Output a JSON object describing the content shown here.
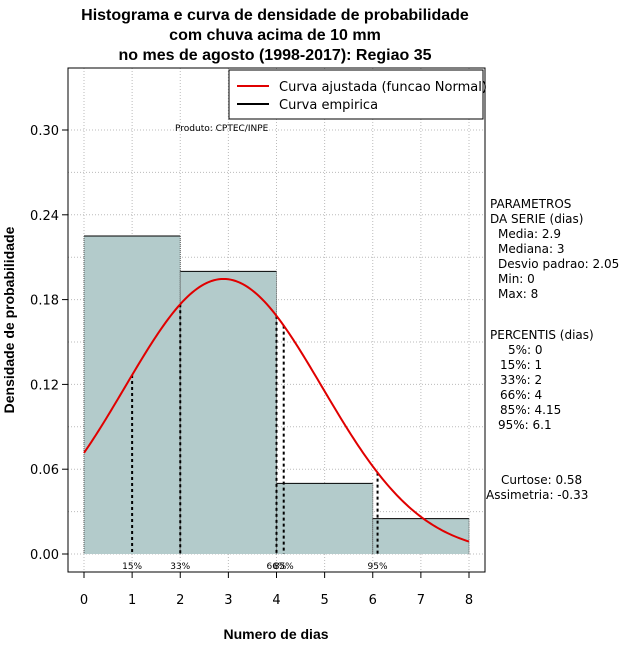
{
  "chart_data": {
    "type": "bar",
    "title": [
      "Histograma e curva de densidade de probabilidade",
      "com chuva acima de 10 mm",
      "no mes de agosto (1998-2017): Regiao 35"
    ],
    "xlabel": "Numero de dias",
    "ylabel": "Densidade de probabilidade",
    "xlim": [
      0,
      8
    ],
    "ylim": [
      0,
      0.33
    ],
    "x_ticks": [
      "0",
      "1",
      "2",
      "3",
      "4",
      "5",
      "6",
      "7",
      "8"
    ],
    "y_ticks": [
      "0.00",
      "0.06",
      "0.12",
      "0.18",
      "0.24",
      "0.30"
    ],
    "bins": [
      {
        "start": 0,
        "end": 2,
        "density": 0.225
      },
      {
        "start": 2,
        "end": 4,
        "density": 0.2
      },
      {
        "start": 4,
        "end": 6,
        "density": 0.05
      },
      {
        "start": 6,
        "end": 8,
        "density": 0.025
      }
    ],
    "normal_fit": {
      "mean": 2.9,
      "sd": 2.05
    },
    "percentile_markers": [
      {
        "x": 1,
        "label": "15%"
      },
      {
        "x": 2,
        "label": "33%"
      },
      {
        "x": 4,
        "label": "66%"
      },
      {
        "x": 4.15,
        "label": "85%"
      },
      {
        "x": 6.1,
        "label": "95%"
      }
    ],
    "legend": [
      {
        "label": "Curva ajustada (funcao Normal)",
        "color": "#e00000"
      },
      {
        "label": "Curva empirica",
        "color": "#000000"
      }
    ],
    "product_note": "Produto: CPTEC/INPE",
    "colors": {
      "bar_fill": "#b3cbcb",
      "curve": "#e00000",
      "grid": "#bbbbbb"
    }
  },
  "stats": {
    "parametros": [
      "PARAMETROS",
      "DA SERIE (dias)",
      "Media: 2.9",
      "Mediana: 3",
      "Desvio padrao: 2.05",
      "Min: 0",
      "Max: 8"
    ],
    "percentis": [
      "PERCENTIS (dias)",
      "5%: 0",
      "15%: 1",
      "33%: 2",
      "66%: 4",
      "85%: 4.15",
      "95%: 6.1"
    ],
    "shape": [
      "Curtose: 0.58",
      "Assimetria: -0.33"
    ]
  }
}
